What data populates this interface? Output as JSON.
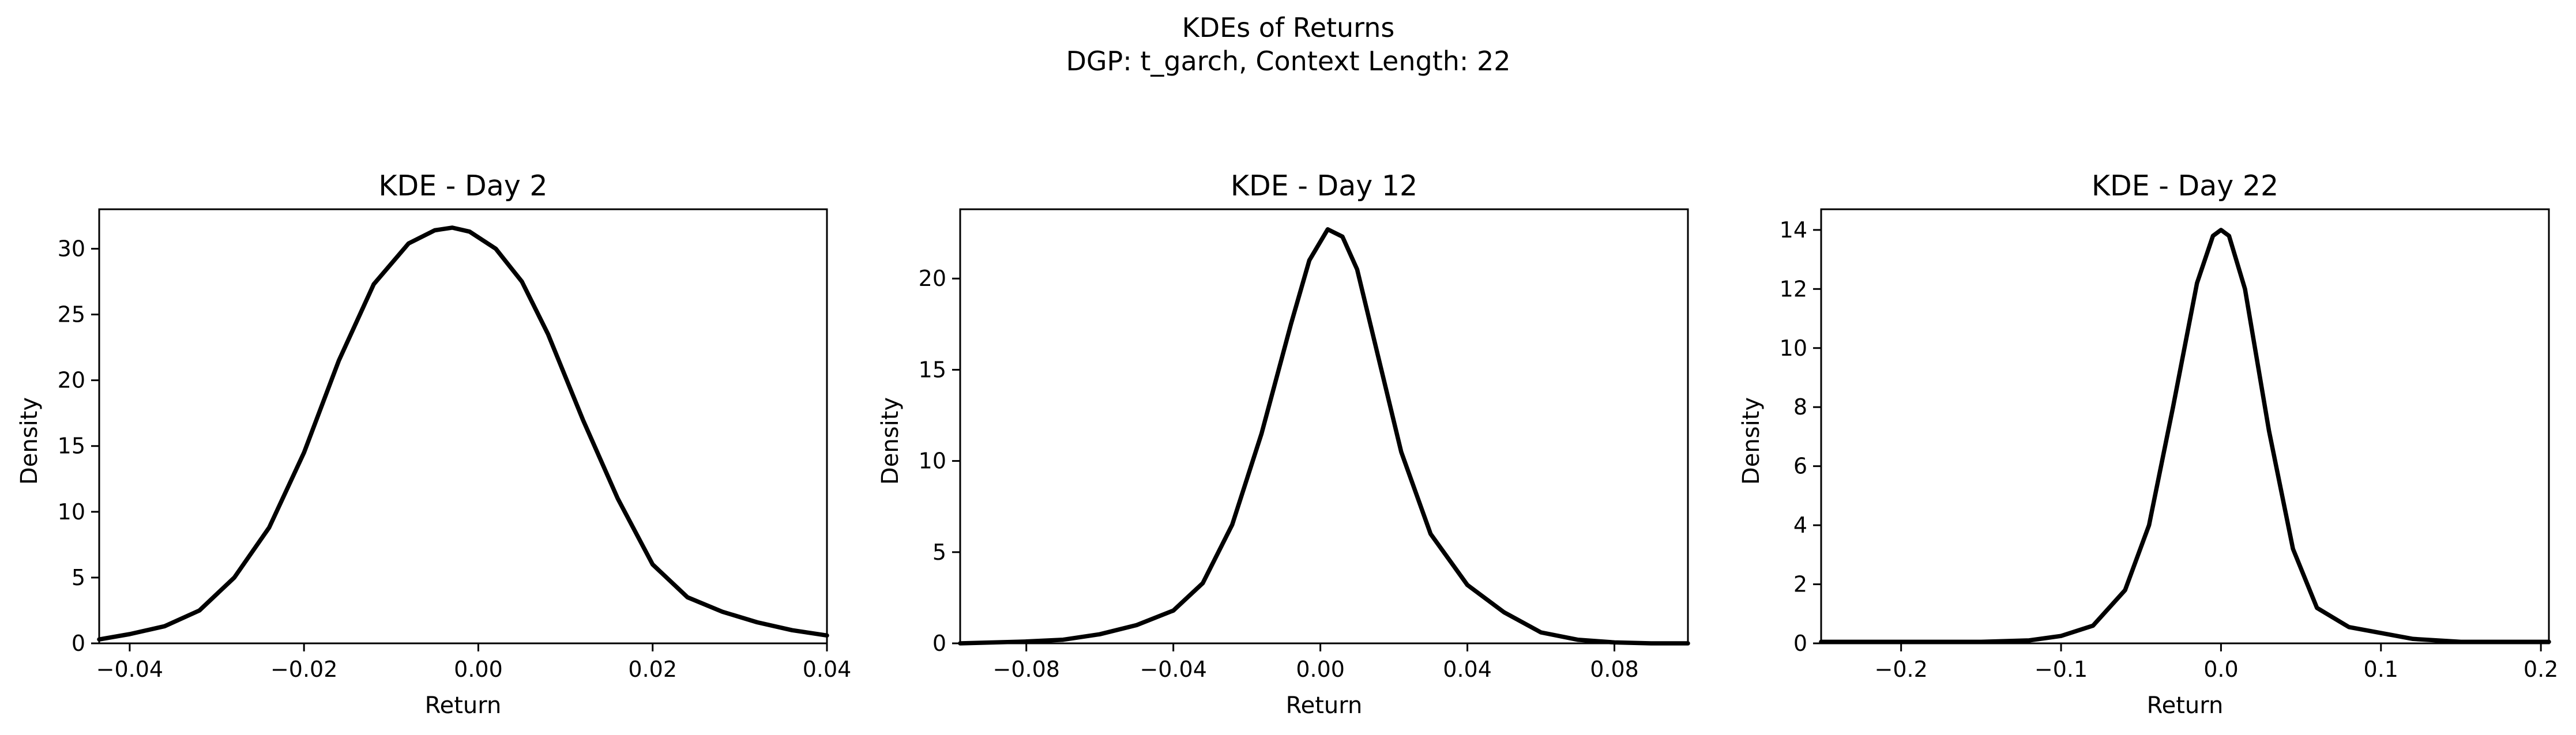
{
  "figure": {
    "title_line1": "KDEs of Returns",
    "title_line2": "DGP: t_garch, Context Length: 22"
  },
  "chart_data": [
    {
      "type": "line",
      "title": "KDE - Day 2",
      "xlabel": "Return",
      "ylabel": "Density",
      "xlim": [
        -0.0435,
        0.04
      ],
      "ylim": [
        0,
        33.0
      ],
      "xticks": [
        -0.04,
        -0.02,
        0.0,
        0.02,
        0.04
      ],
      "xtick_labels": [
        "−0.04",
        "−0.02",
        "0.00",
        "0.02",
        "0.04"
      ],
      "yticks": [
        0,
        5,
        10,
        15,
        20,
        25,
        30
      ],
      "ytick_labels": [
        "0",
        "5",
        "10",
        "15",
        "20",
        "25",
        "30"
      ],
      "grid": false,
      "color": "#000000",
      "series": [
        {
          "x": [
            -0.0435,
            -0.04,
            -0.036,
            -0.032,
            -0.028,
            -0.024,
            -0.02,
            -0.016,
            -0.012,
            -0.008,
            -0.005,
            -0.003,
            -0.001,
            0.002,
            0.005,
            0.008,
            0.012,
            0.016,
            0.02,
            0.024,
            0.028,
            0.032,
            0.036,
            0.04
          ],
          "y": [
            0.3,
            0.7,
            1.3,
            2.5,
            5.0,
            8.8,
            14.5,
            21.5,
            27.3,
            30.4,
            31.4,
            31.6,
            31.3,
            30.0,
            27.5,
            23.5,
            17.0,
            11.0,
            6.0,
            3.5,
            2.4,
            1.6,
            1.0,
            0.6
          ]
        }
      ]
    },
    {
      "type": "line",
      "title": "KDE - Day 12",
      "xlabel": "Return",
      "ylabel": "Density",
      "xlim": [
        -0.098,
        0.1
      ],
      "ylim": [
        0,
        23.8
      ],
      "xticks": [
        -0.08,
        -0.04,
        0.0,
        0.04,
        0.08
      ],
      "xtick_labels": [
        "−0.08",
        "−0.04",
        "0.00",
        "0.04",
        "0.08"
      ],
      "yticks": [
        0,
        5,
        10,
        15,
        20
      ],
      "ytick_labels": [
        "0",
        "5",
        "10",
        "15",
        "20"
      ],
      "grid": false,
      "color": "#000000",
      "series": [
        {
          "x": [
            -0.098,
            -0.08,
            -0.07,
            -0.06,
            -0.05,
            -0.04,
            -0.032,
            -0.024,
            -0.016,
            -0.008,
            -0.003,
            0.002,
            0.006,
            0.01,
            0.016,
            0.022,
            0.03,
            0.04,
            0.05,
            0.06,
            0.07,
            0.08,
            0.09,
            0.1
          ],
          "y": [
            0.0,
            0.1,
            0.2,
            0.5,
            1.0,
            1.8,
            3.3,
            6.5,
            11.5,
            17.5,
            21.0,
            22.7,
            22.3,
            20.5,
            15.5,
            10.5,
            6.0,
            3.2,
            1.7,
            0.6,
            0.2,
            0.05,
            0.0,
            0.0
          ]
        }
      ]
    },
    {
      "type": "line",
      "title": "KDE - Day 22",
      "xlabel": "Return",
      "ylabel": "Density",
      "xlim": [
        -0.25,
        0.205
      ],
      "ylim": [
        0,
        14.7
      ],
      "xticks": [
        -0.2,
        -0.1,
        0.0,
        0.1,
        0.2
      ],
      "xtick_labels": [
        "−0.2",
        "−0.1",
        "0.0",
        "0.1",
        "0.2"
      ],
      "yticks": [
        0,
        2,
        4,
        6,
        8,
        10,
        12,
        14
      ],
      "ytick_labels": [
        "0",
        "2",
        "4",
        "6",
        "8",
        "10",
        "12",
        "14"
      ],
      "grid": false,
      "color": "#000000",
      "series": [
        {
          "x": [
            -0.25,
            -0.2,
            -0.15,
            -0.12,
            -0.1,
            -0.08,
            -0.06,
            -0.045,
            -0.03,
            -0.015,
            -0.005,
            0.0,
            0.005,
            0.015,
            0.03,
            0.045,
            0.06,
            0.08,
            0.1,
            0.12,
            0.15,
            0.18,
            0.205
          ],
          "y": [
            0.05,
            0.05,
            0.05,
            0.1,
            0.25,
            0.6,
            1.8,
            4.0,
            8.0,
            12.2,
            13.8,
            14.0,
            13.8,
            12.0,
            7.2,
            3.2,
            1.2,
            0.55,
            0.35,
            0.15,
            0.05,
            0.05,
            0.05
          ]
        }
      ]
    }
  ]
}
